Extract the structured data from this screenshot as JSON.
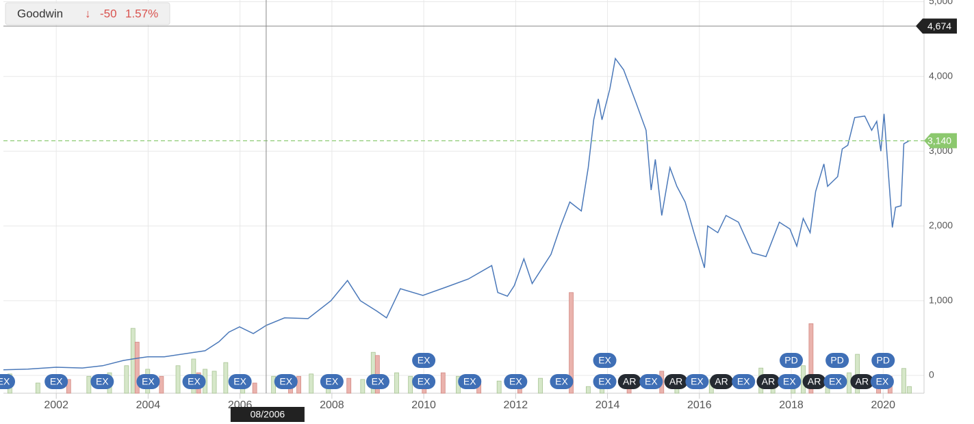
{
  "chart_data": {
    "type": "line",
    "series": [
      {
        "name": "Goodwin",
        "color": "#4a78b9",
        "x": [
          2000.85,
          2001.38,
          2002.0,
          2002.57,
          2003.01,
          2003.46,
          2003.76,
          2003.99,
          2004.35,
          2004.8,
          2005.24,
          2005.54,
          2005.76,
          2005.99,
          2006.29,
          2006.57,
          2006.97,
          2007.48,
          2007.98,
          2008.34,
          2008.62,
          2008.98,
          2009.19,
          2009.49,
          2009.98,
          2010.48,
          2010.97,
          2011.48,
          2011.61,
          2011.82,
          2011.97,
          2012.18,
          2012.36,
          2012.77,
          2012.98,
          2013.18,
          2013.43,
          2013.58,
          2013.7,
          2013.8,
          2013.88,
          2014.05,
          2014.17,
          2014.35,
          2014.62,
          2014.84,
          2014.95,
          2015.04,
          2015.18,
          2015.36,
          2015.51,
          2015.69,
          2015.88,
          2016.11,
          2016.18,
          2016.4,
          2016.58,
          2016.85,
          2017.15,
          2017.45,
          2017.74,
          2017.97,
          2018.12,
          2018.26,
          2018.41,
          2018.53,
          2018.71,
          2018.79,
          2019.01,
          2019.11,
          2019.23,
          2019.38,
          2019.6,
          2019.75,
          2019.86,
          2019.95,
          2020.02,
          2020.2,
          2020.27,
          2020.39,
          2020.45,
          2020.57
        ],
        "values": [
          75,
          85,
          110,
          100,
          130,
          200,
          230,
          250,
          250,
          290,
          330,
          450,
          580,
          650,
          560,
          670,
          770,
          760,
          1000,
          1270,
          1000,
          860,
          770,
          1160,
          1070,
          1180,
          1290,
          1470,
          1110,
          1060,
          1200,
          1560,
          1230,
          1620,
          2000,
          2320,
          2200,
          2780,
          3420,
          3700,
          3420,
          3830,
          4240,
          4090,
          3650,
          3280,
          2480,
          2890,
          2140,
          2780,
          2530,
          2320,
          1910,
          1440,
          2000,
          1910,
          2140,
          2050,
          1640,
          1590,
          2050,
          1960,
          1730,
          2100,
          1910,
          2460,
          2830,
          2530,
          2660,
          3030,
          3080,
          3450,
          3470,
          3280,
          3400,
          3000,
          3500,
          1980,
          2250,
          2270,
          3100,
          3140
        ]
      }
    ],
    "volume": {
      "x": [
        2000.99,
        2001.6,
        2002.27,
        2002.71,
        2003.16,
        2003.53,
        2003.67,
        2003.76,
        2003.99,
        2004.29,
        2004.65,
        2004.99,
        2005.1,
        2005.24,
        2005.44,
        2005.69,
        2006.06,
        2006.32,
        2006.73,
        2007.1,
        2007.28,
        2007.55,
        2007.92,
        2008.37,
        2008.67,
        2008.9,
        2008.99,
        2009.41,
        2009.71,
        2010.01,
        2010.42,
        2010.75,
        2011.2,
        2011.64,
        2012.09,
        2012.54,
        2013.21,
        2013.58,
        2013.88,
        2014.47,
        2015.18,
        2015.51,
        2016.26,
        2017.34,
        2017.6,
        2018.04,
        2018.26,
        2018.43,
        2018.79,
        2019.26,
        2019.44,
        2019.9,
        2020.15,
        2020.45,
        2020.57
      ],
      "values": [
        49,
        26,
        35,
        43,
        52,
        70,
        165,
        130,
        61,
        43,
        70,
        87,
        52,
        61,
        56,
        78,
        35,
        26,
        43,
        35,
        43,
        49,
        35,
        38,
        35,
        104,
        96,
        52,
        43,
        26,
        52,
        43,
        35,
        31,
        31,
        38,
        256,
        17,
        35,
        26,
        56,
        35,
        35,
        64,
        43,
        26,
        70,
        177,
        35,
        52,
        99,
        35,
        43,
        63,
        17
      ],
      "colors": [
        "g",
        "g",
        "r",
        "g",
        "g",
        "g",
        "g",
        "r",
        "g",
        "r",
        "g",
        "g",
        "r",
        "g",
        "g",
        "g",
        "g",
        "r",
        "g",
        "r",
        "r",
        "g",
        "g",
        "r",
        "g",
        "g",
        "r",
        "g",
        "g",
        "r",
        "r",
        "g",
        "r",
        "g",
        "r",
        "g",
        "r",
        "g",
        "g",
        "r",
        "r",
        "g",
        "g",
        "g",
        "g",
        "g",
        "g",
        "r",
        "g",
        "g",
        "g",
        "r",
        "r",
        "g",
        "g"
      ],
      "y2lim": [
        0,
        1000
      ]
    },
    "bar_colors": {
      "g": "#d6e7c9",
      "r": "#eab3ad"
    },
    "xlim": [
      2000.85,
      2020.89
    ],
    "xticks": [
      2002,
      2004,
      2006,
      2008,
      2010,
      2012,
      2014,
      2016,
      2018,
      2020
    ],
    "ylim": [
      -238,
      5023
    ],
    "yticks": [
      0,
      {
        "value": 1000,
        "label": "1,000"
      },
      {
        "value": 2000,
        "label": "2,000"
      },
      {
        "value": 3000,
        "label": "3,000"
      },
      {
        "value": 4000,
        "label": "4,000"
      },
      {
        "value": 5000,
        "label": "5,000"
      }
    ],
    "grid": true,
    "last_price": {
      "value": 3140,
      "label": "3,140"
    },
    "crosshair": {
      "x": 2006.57,
      "x_label": "08/2006",
      "y": {
        "value": 4674,
        "label": "4,674"
      }
    },
    "events": [
      {
        "x": 2000.85,
        "label": "EX",
        "row": 0
      },
      {
        "x": 2002.0,
        "label": "EX",
        "row": 0
      },
      {
        "x": 2003.0,
        "label": "EX",
        "row": 0
      },
      {
        "x": 2004.0,
        "label": "EX",
        "row": 0
      },
      {
        "x": 2005.0,
        "label": "EX",
        "row": 0
      },
      {
        "x": 2006.0,
        "label": "EX",
        "row": 0
      },
      {
        "x": 2007.0,
        "label": "EX",
        "row": 0
      },
      {
        "x": 2008.0,
        "label": "EX",
        "row": 0
      },
      {
        "x": 2009.0,
        "label": "EX",
        "row": 0
      },
      {
        "x": 2010.0,
        "label": "EX",
        "row": 0
      },
      {
        "x": 2010.0,
        "label": "EX",
        "row": 1
      },
      {
        "x": 2011.0,
        "label": "EX",
        "row": 0
      },
      {
        "x": 2012.0,
        "label": "EX",
        "row": 0
      },
      {
        "x": 2013.0,
        "label": "EX",
        "row": 0
      },
      {
        "x": 2013.94,
        "label": "EX",
        "row": 0
      },
      {
        "x": 2013.94,
        "label": "EX",
        "row": 1
      },
      {
        "x": 2014.48,
        "label": "AR",
        "row": 0
      },
      {
        "x": 2014.95,
        "label": "EX",
        "row": 0
      },
      {
        "x": 2015.49,
        "label": "AR",
        "row": 0
      },
      {
        "x": 2015.95,
        "label": "EX",
        "row": 0
      },
      {
        "x": 2016.48,
        "label": "AR",
        "row": 0
      },
      {
        "x": 2016.96,
        "label": "EX",
        "row": 0
      },
      {
        "x": 2017.5,
        "label": "AR",
        "row": 0
      },
      {
        "x": 2017.96,
        "label": "EX",
        "row": 0
      },
      {
        "x": 2018.0,
        "label": "PD",
        "row": 1
      },
      {
        "x": 2018.5,
        "label": "AR",
        "row": 0
      },
      {
        "x": 2018.96,
        "label": "EX",
        "row": 0
      },
      {
        "x": 2019.0,
        "label": "PD",
        "row": 1
      },
      {
        "x": 2019.54,
        "label": "AR",
        "row": 0
      },
      {
        "x": 2019.98,
        "label": "EX",
        "row": 0
      },
      {
        "x": 2020.0,
        "label": "PD",
        "row": 1
      }
    ]
  },
  "header": {
    "change": "-50",
    "change_pct": "1.57%"
  }
}
